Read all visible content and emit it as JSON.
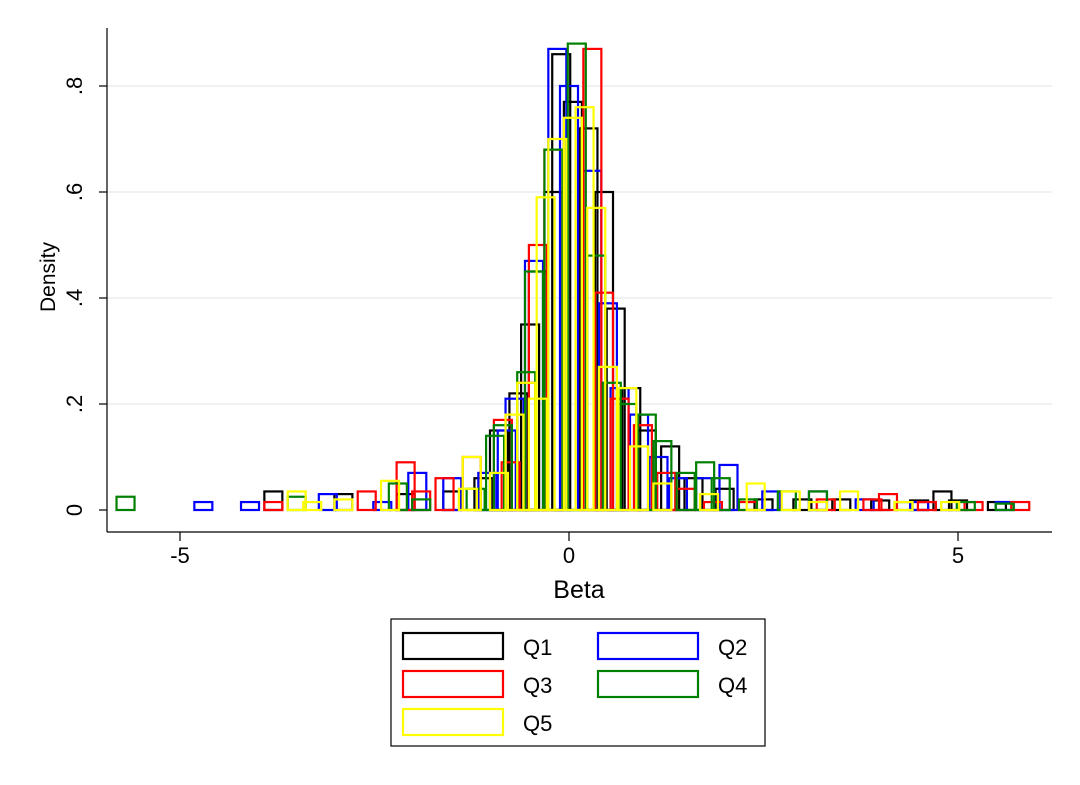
{
  "chart_data": {
    "type": "histogram",
    "xlabel": "Beta",
    "ylabel": "Density",
    "xlim": [
      -6.2,
      6.2
    ],
    "ylim": [
      0,
      0.9
    ],
    "x_ticks": [
      {
        "value": -5,
        "label": "-5"
      },
      {
        "value": 0,
        "label": "0"
      },
      {
        "value": 5,
        "label": "5"
      }
    ],
    "y_ticks": [
      {
        "value": 0,
        "label": "0"
      },
      {
        "value": 0.2,
        "label": ".2"
      },
      {
        "value": 0.4,
        "label": ".4"
      },
      {
        "value": 0.6,
        "label": ".6"
      },
      {
        "value": 0.8,
        "label": ".8"
      }
    ],
    "grid": "horizontal",
    "legend": "bottom",
    "series": [
      {
        "name": "Q1",
        "color": "#000000",
        "bin_width": 0.1,
        "bars": [
          [
            -3.8,
            0.035
          ],
          [
            -2.9,
            0.03
          ],
          [
            -2.1,
            0.03
          ],
          [
            -1.5,
            0.035
          ],
          [
            -1.1,
            0.06
          ],
          [
            -0.9,
            0.15
          ],
          [
            -0.65,
            0.22
          ],
          [
            -0.5,
            0.35
          ],
          [
            -0.4,
            0.45
          ],
          [
            -0.2,
            0.6
          ],
          [
            -0.1,
            0.86
          ],
          [
            0.05,
            0.77
          ],
          [
            0.25,
            0.72
          ],
          [
            0.45,
            0.6
          ],
          [
            0.6,
            0.38
          ],
          [
            0.8,
            0.23
          ],
          [
            1.0,
            0.15
          ],
          [
            1.3,
            0.12
          ],
          [
            1.6,
            0.06
          ],
          [
            2.0,
            0.04
          ],
          [
            2.5,
            0.02
          ],
          [
            3.0,
            0.02
          ],
          [
            3.5,
            0.02
          ],
          [
            4.0,
            0.018
          ],
          [
            4.5,
            0.018
          ],
          [
            4.8,
            0.035
          ],
          [
            5.0,
            0.018
          ],
          [
            5.5,
            0.015
          ]
        ]
      },
      {
        "name": "Q2",
        "color": "#0000ff",
        "bin_width": 0.1,
        "bars": [
          [
            -4.7,
            0.015
          ],
          [
            -4.1,
            0.015
          ],
          [
            -3.1,
            0.03
          ],
          [
            -2.4,
            0.015
          ],
          [
            -1.95,
            0.07
          ],
          [
            -1.5,
            0.06
          ],
          [
            -1.05,
            0.07
          ],
          [
            -0.8,
            0.15
          ],
          [
            -0.7,
            0.21
          ],
          [
            -0.45,
            0.47
          ],
          [
            -0.15,
            0.87
          ],
          [
            0.0,
            0.8
          ],
          [
            0.3,
            0.64
          ],
          [
            0.5,
            0.39
          ],
          [
            0.65,
            0.23
          ],
          [
            0.9,
            0.18
          ],
          [
            1.15,
            0.1
          ],
          [
            1.4,
            0.06
          ],
          [
            1.75,
            0.06
          ],
          [
            2.05,
            0.085
          ],
          [
            2.6,
            0.035
          ],
          [
            3.2,
            0.035
          ],
          [
            3.8,
            0.02
          ],
          [
            4.5,
            0.015
          ],
          [
            5.6,
            0.015
          ]
        ]
      },
      {
        "name": "Q3",
        "color": "#ff0000",
        "bin_width": 0.1,
        "bars": [
          [
            -3.8,
            0.015
          ],
          [
            -2.6,
            0.035
          ],
          [
            -2.1,
            0.09
          ],
          [
            -1.9,
            0.035
          ],
          [
            -1.6,
            0.06
          ],
          [
            -1.25,
            0.1
          ],
          [
            -0.85,
            0.17
          ],
          [
            -0.75,
            0.09
          ],
          [
            -0.55,
            0.24
          ],
          [
            -0.4,
            0.5
          ],
          [
            -0.2,
            0.68
          ],
          [
            0.3,
            0.87
          ],
          [
            0.45,
            0.41
          ],
          [
            0.65,
            0.21
          ],
          [
            0.95,
            0.16
          ],
          [
            1.25,
            0.07
          ],
          [
            1.5,
            0.04
          ],
          [
            1.85,
            0.015
          ],
          [
            2.3,
            0.015
          ],
          [
            3.3,
            0.02
          ],
          [
            3.9,
            0.02
          ],
          [
            4.1,
            0.03
          ],
          [
            4.6,
            0.015
          ],
          [
            5.2,
            0.015
          ],
          [
            5.8,
            0.015
          ]
        ]
      },
      {
        "name": "Q4",
        "color": "#008000",
        "bin_width": 0.1,
        "bars": [
          [
            -5.7,
            0.025
          ],
          [
            -3.5,
            0.025
          ],
          [
            -2.2,
            0.05
          ],
          [
            -1.9,
            0.02
          ],
          [
            -1.2,
            0.04
          ],
          [
            -0.95,
            0.14
          ],
          [
            -0.85,
            0.16
          ],
          [
            -0.55,
            0.26
          ],
          [
            -0.45,
            0.45
          ],
          [
            -0.2,
            0.68
          ],
          [
            0.1,
            0.88
          ],
          [
            0.35,
            0.48
          ],
          [
            0.55,
            0.24
          ],
          [
            0.75,
            0.2
          ],
          [
            1.0,
            0.18
          ],
          [
            1.2,
            0.13
          ],
          [
            1.5,
            0.07
          ],
          [
            1.75,
            0.09
          ],
          [
            1.95,
            0.06
          ],
          [
            2.3,
            0.02
          ],
          [
            2.8,
            0.035
          ],
          [
            3.2,
            0.035
          ],
          [
            4.3,
            0.015
          ],
          [
            5.1,
            0.015
          ],
          [
            5.6,
            0.012
          ]
        ]
      },
      {
        "name": "Q5",
        "color": "#ffff00",
        "bin_width": 0.1,
        "bars": [
          [
            -3.5,
            0.035
          ],
          [
            -3.3,
            0.015
          ],
          [
            -2.9,
            0.02
          ],
          [
            -2.3,
            0.055
          ],
          [
            -1.3,
            0.04
          ],
          [
            -1.25,
            0.1
          ],
          [
            -0.9,
            0.07
          ],
          [
            -0.7,
            0.18
          ],
          [
            -0.55,
            0.24
          ],
          [
            -0.4,
            0.21
          ],
          [
            -0.3,
            0.59
          ],
          [
            -0.15,
            0.7
          ],
          [
            0.05,
            0.74
          ],
          [
            0.2,
            0.76
          ],
          [
            0.35,
            0.57
          ],
          [
            0.5,
            0.27
          ],
          [
            0.75,
            0.23
          ],
          [
            0.9,
            0.12
          ],
          [
            1.2,
            0.05
          ],
          [
            1.8,
            0.03
          ],
          [
            2.4,
            0.05
          ],
          [
            2.85,
            0.035
          ],
          [
            3.2,
            0.015
          ],
          [
            3.6,
            0.035
          ],
          [
            4.3,
            0.015
          ],
          [
            4.9,
            0.015
          ]
        ]
      }
    ]
  }
}
